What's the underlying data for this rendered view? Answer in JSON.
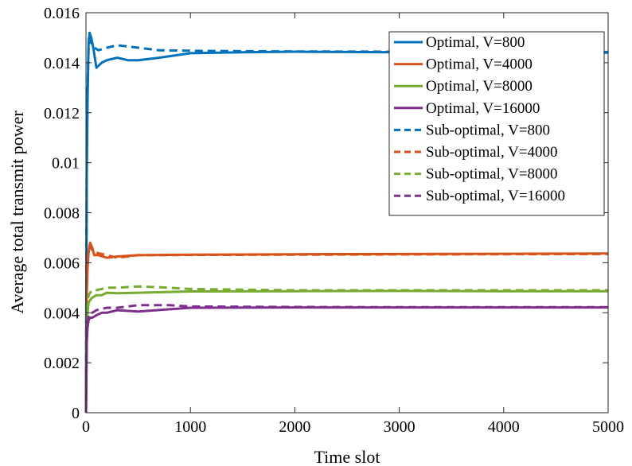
{
  "chart_data": {
    "type": "line",
    "xlabel": "Time slot",
    "ylabel": "Average total transmit power",
    "xlim": [
      0,
      5000
    ],
    "ylim": [
      0,
      0.016
    ],
    "xticks": [
      0,
      1000,
      2000,
      3000,
      4000,
      5000
    ],
    "xtick_labels": [
      "0",
      "1000",
      "2000",
      "3000",
      "4000",
      "5000"
    ],
    "yticks": [
      0,
      0.002,
      0.004,
      0.006,
      0.008,
      0.01,
      0.012,
      0.014,
      0.016
    ],
    "ytick_labels": [
      "0",
      "0.002",
      "0.004",
      "0.006",
      "0.008",
      "0.01",
      "0.012",
      "0.014",
      "0.016"
    ],
    "grid": false,
    "legend_position": "top-right",
    "series": [
      {
        "name": "Optimal, V=800",
        "color": "#0072BD",
        "dash": "solid",
        "x": [
          0,
          8,
          15,
          25,
          35,
          50,
          70,
          100,
          150,
          200,
          300,
          400,
          500,
          700,
          1000,
          1500,
          2000,
          2500,
          3000,
          4000,
          5000
        ],
        "y": [
          0,
          0.0095,
          0.0125,
          0.0148,
          0.0152,
          0.015,
          0.0146,
          0.0138,
          0.014,
          0.0141,
          0.0142,
          0.0141,
          0.0141,
          0.0142,
          0.01438,
          0.01442,
          0.01444,
          0.01443,
          0.01442,
          0.01441,
          0.0144
        ]
      },
      {
        "name": "Optimal, V=4000",
        "color": "#D95319",
        "dash": "solid",
        "x": [
          0,
          8,
          15,
          25,
          40,
          60,
          80,
          120,
          200,
          300,
          500,
          1000,
          2000,
          3000,
          4000,
          5000
        ],
        "y": [
          0,
          0.0048,
          0.0058,
          0.0064,
          0.0068,
          0.0066,
          0.0063,
          0.0063,
          0.0062,
          0.00625,
          0.0063,
          0.00632,
          0.00634,
          0.00635,
          0.00636,
          0.00637
        ]
      },
      {
        "name": "Optimal, V=8000",
        "color": "#77AC30",
        "dash": "solid",
        "x": [
          0,
          8,
          15,
          25,
          40,
          60,
          100,
          150,
          200,
          300,
          500,
          1000,
          2000,
          3000,
          4000,
          5000
        ],
        "y": [
          0,
          0.0032,
          0.004,
          0.0044,
          0.0045,
          0.0046,
          0.0047,
          0.0047,
          0.0048,
          0.00478,
          0.0048,
          0.00485,
          0.00486,
          0.00487,
          0.00486,
          0.00486
        ]
      },
      {
        "name": "Optimal, V=16000",
        "color": "#7E2F8E",
        "dash": "solid",
        "x": [
          0,
          8,
          15,
          25,
          40,
          60,
          100,
          150,
          200,
          300,
          500,
          1000,
          2000,
          3000,
          4000,
          5000
        ],
        "y": [
          0,
          0.0028,
          0.0034,
          0.0037,
          0.0038,
          0.0038,
          0.0039,
          0.004,
          0.004,
          0.0041,
          0.00405,
          0.0042,
          0.00421,
          0.00421,
          0.00421,
          0.00421
        ]
      },
      {
        "name": "Sub-optimal, V=800",
        "color": "#0072BD",
        "dash": "dashed",
        "x": [
          0,
          8,
          15,
          25,
          35,
          50,
          80,
          120,
          200,
          300,
          500,
          700,
          1000,
          1500,
          2000,
          3000,
          4000,
          5000
        ],
        "y": [
          0,
          0.01,
          0.013,
          0.0146,
          0.0149,
          0.0148,
          0.0146,
          0.0145,
          0.0146,
          0.0147,
          0.0146,
          0.0145,
          0.01448,
          0.01446,
          0.01445,
          0.01444,
          0.01443,
          0.01443
        ]
      },
      {
        "name": "Sub-optimal, V=4000",
        "color": "#D95319",
        "dash": "dashed",
        "x": [
          0,
          8,
          15,
          25,
          40,
          60,
          100,
          200,
          300,
          500,
          1000,
          2000,
          3000,
          4000,
          5000
        ],
        "y": [
          0,
          0.005,
          0.006,
          0.0065,
          0.0067,
          0.0065,
          0.0064,
          0.0063,
          0.0062,
          0.0063,
          0.00631,
          0.00632,
          0.00633,
          0.00634,
          0.00635
        ]
      },
      {
        "name": "Sub-optimal, V=8000",
        "color": "#77AC30",
        "dash": "dashed",
        "x": [
          0,
          8,
          15,
          25,
          40,
          60,
          100,
          200,
          300,
          500,
          800,
          1000,
          2000,
          3000,
          4000,
          5000
        ],
        "y": [
          0,
          0.0035,
          0.0043,
          0.0047,
          0.0048,
          0.0049,
          0.0049,
          0.005,
          0.005,
          0.00505,
          0.005,
          0.00495,
          0.0049,
          0.0049,
          0.0049,
          0.0049
        ]
      },
      {
        "name": "Sub-optimal, V=16000",
        "color": "#7E2F8E",
        "dash": "dashed",
        "x": [
          0,
          8,
          15,
          25,
          40,
          60,
          100,
          200,
          300,
          500,
          800,
          1000,
          2000,
          3000,
          4000,
          5000
        ],
        "y": [
          0,
          0.003,
          0.0036,
          0.0039,
          0.004,
          0.004,
          0.0041,
          0.0042,
          0.0042,
          0.0043,
          0.0043,
          0.00425,
          0.00423,
          0.00422,
          0.00422,
          0.00422
        ]
      }
    ]
  }
}
